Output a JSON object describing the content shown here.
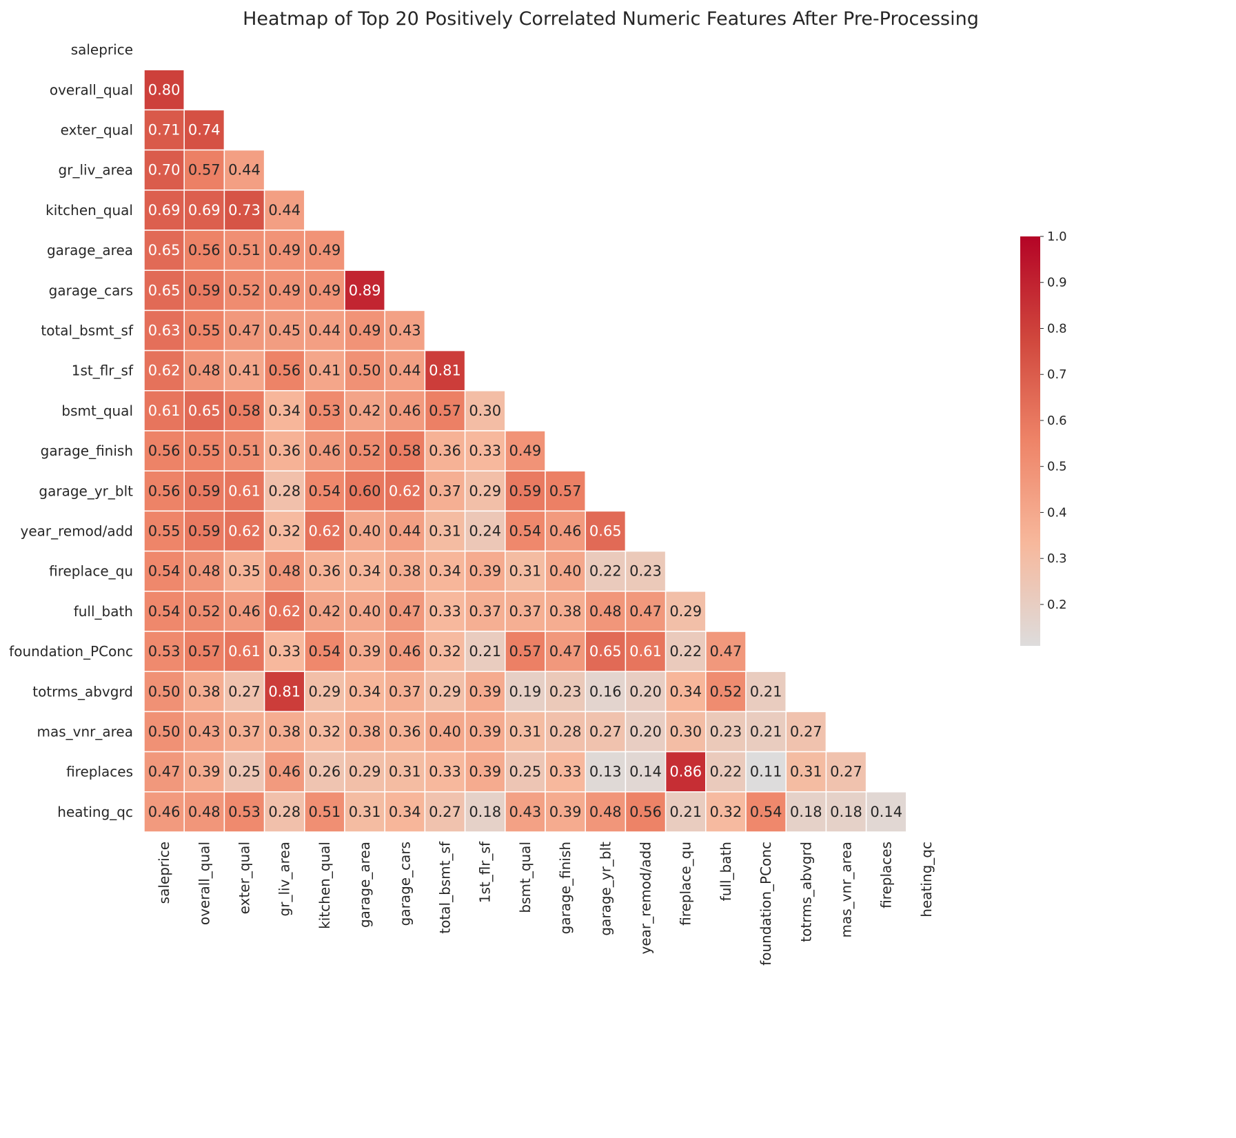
{
  "chart_data": {
    "type": "heatmap",
    "title": "Heatmap of Top 20 Positively Correlated Numeric Features After Pre-Processing",
    "mask": "upper-triangle-and-diagonal",
    "value_format": "2 decimals",
    "labels": [
      "saleprice",
      "overall_qual",
      "exter_qual",
      "gr_liv_area",
      "kitchen_qual",
      "garage_area",
      "garage_cars",
      "total_bsmt_sf",
      "1st_flr_sf",
      "bsmt_qual",
      "garage_finish",
      "garage_yr_blt",
      "year_remod/add",
      "fireplace_qu",
      "full_bath",
      "foundation_PConc",
      "totrms_abvgrd",
      "mas_vnr_area",
      "fireplaces",
      "heating_qc"
    ],
    "matrix_lower": [
      [],
      [
        0.8
      ],
      [
        0.71,
        0.74
      ],
      [
        0.7,
        0.57,
        0.44
      ],
      [
        0.69,
        0.69,
        0.73,
        0.44
      ],
      [
        0.65,
        0.56,
        0.51,
        0.49,
        0.49
      ],
      [
        0.65,
        0.59,
        0.52,
        0.49,
        0.49,
        0.89
      ],
      [
        0.63,
        0.55,
        0.47,
        0.45,
        0.44,
        0.49,
        0.43
      ],
      [
        0.62,
        0.48,
        0.41,
        0.56,
        0.41,
        0.5,
        0.44,
        0.81
      ],
      [
        0.61,
        0.65,
        0.58,
        0.34,
        0.53,
        0.42,
        0.46,
        0.57,
        0.3
      ],
      [
        0.56,
        0.55,
        0.51,
        0.36,
        0.46,
        0.52,
        0.58,
        0.36,
        0.33,
        0.49
      ],
      [
        0.56,
        0.59,
        0.61,
        0.28,
        0.54,
        0.6,
        0.62,
        0.37,
        0.29,
        0.59,
        0.57
      ],
      [
        0.55,
        0.59,
        0.62,
        0.32,
        0.62,
        0.4,
        0.44,
        0.31,
        0.24,
        0.54,
        0.46,
        0.65
      ],
      [
        0.54,
        0.48,
        0.35,
        0.48,
        0.36,
        0.34,
        0.38,
        0.34,
        0.39,
        0.31,
        0.4,
        0.22,
        0.23
      ],
      [
        0.54,
        0.52,
        0.46,
        0.62,
        0.42,
        0.4,
        0.47,
        0.33,
        0.37,
        0.37,
        0.38,
        0.48,
        0.47,
        0.29
      ],
      [
        0.53,
        0.57,
        0.61,
        0.33,
        0.54,
        0.39,
        0.46,
        0.32,
        0.21,
        0.57,
        0.47,
        0.65,
        0.61,
        0.22,
        0.47
      ],
      [
        0.5,
        0.38,
        0.27,
        0.81,
        0.29,
        0.34,
        0.37,
        0.29,
        0.39,
        0.19,
        0.23,
        0.16,
        0.2,
        0.34,
        0.52,
        0.21
      ],
      [
        0.5,
        0.43,
        0.37,
        0.38,
        0.32,
        0.38,
        0.36,
        0.4,
        0.39,
        0.31,
        0.28,
        0.27,
        0.2,
        0.3,
        0.23,
        0.21,
        0.27
      ],
      [
        0.47,
        0.39,
        0.25,
        0.46,
        0.26,
        0.29,
        0.31,
        0.33,
        0.39,
        0.25,
        0.33,
        0.13,
        0.14,
        0.86,
        0.22,
        0.11,
        0.31,
        0.27
      ],
      [
        0.46,
        0.48,
        0.53,
        0.28,
        0.51,
        0.31,
        0.34,
        0.27,
        0.18,
        0.43,
        0.39,
        0.48,
        0.56,
        0.21,
        0.32,
        0.54,
        0.18,
        0.18,
        0.14
      ]
    ],
    "colorbar": {
      "cmap": "coolwarm (upper half)",
      "range": [
        0.11,
        1.0
      ],
      "ticks": [
        0.2,
        0.3,
        0.4,
        0.5,
        0.6,
        0.7,
        0.8,
        0.9,
        1.0
      ],
      "tick_labels": [
        "0.2",
        "0.3",
        "0.4",
        "0.5",
        "0.6",
        "0.7",
        "0.8",
        "0.9",
        "1.0"
      ],
      "position": "right"
    },
    "colors": [
      "#dddcdc",
      "#f7b89c",
      "#ee8468",
      "#d0473d",
      "#b40426"
    ]
  }
}
